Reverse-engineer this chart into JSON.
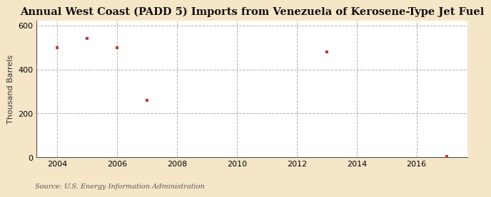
{
  "title": "Annual West Coast (PADD 5) Imports from Venezuela of Kerosene-Type Jet Fuel",
  "ylabel": "Thousand Barrels",
  "source": "Source: U.S. Energy Information Administration",
  "x_values": [
    2004,
    2005,
    2006,
    2007,
    2013,
    2017
  ],
  "y_values": [
    500,
    540,
    500,
    260,
    480,
    5
  ],
  "marker_color": "#c0392b",
  "background_color": "#f5e6c8",
  "plot_bg_color": "#ffffff",
  "xlim": [
    2003.3,
    2017.7
  ],
  "ylim": [
    0,
    620
  ],
  "yticks": [
    0,
    200,
    400,
    600
  ],
  "xticks": [
    2004,
    2006,
    2008,
    2010,
    2012,
    2014,
    2016
  ],
  "title_fontsize": 10.5,
  "label_fontsize": 8,
  "tick_fontsize": 8,
  "source_fontsize": 7
}
